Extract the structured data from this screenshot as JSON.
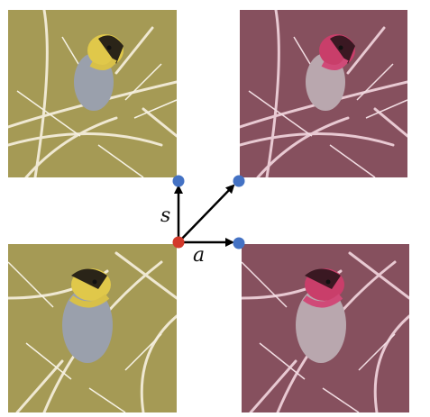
{
  "labels": {
    "vertical_arrow": "s",
    "horizontal_arrow": "a"
  },
  "colors": {
    "origin_point": "#d2382a",
    "end_point": "#4472c4",
    "arrow": "#000000",
    "background_olive": "#a59a55",
    "background_rose": "#86505e",
    "bird_body_olive": "#9aa0ac",
    "bird_head_olive": "#e0c84a",
    "bird_body_rose": "#b9a7ae",
    "bird_head_rose": "#c93e6a"
  },
  "panels": [
    {
      "name": "top-left",
      "style": "olive",
      "pose": "a"
    },
    {
      "name": "top-right",
      "style": "rose",
      "pose": "a"
    },
    {
      "name": "bottom-left",
      "style": "olive",
      "pose": "b"
    },
    {
      "name": "bottom-right",
      "style": "rose",
      "pose": "b"
    }
  ]
}
